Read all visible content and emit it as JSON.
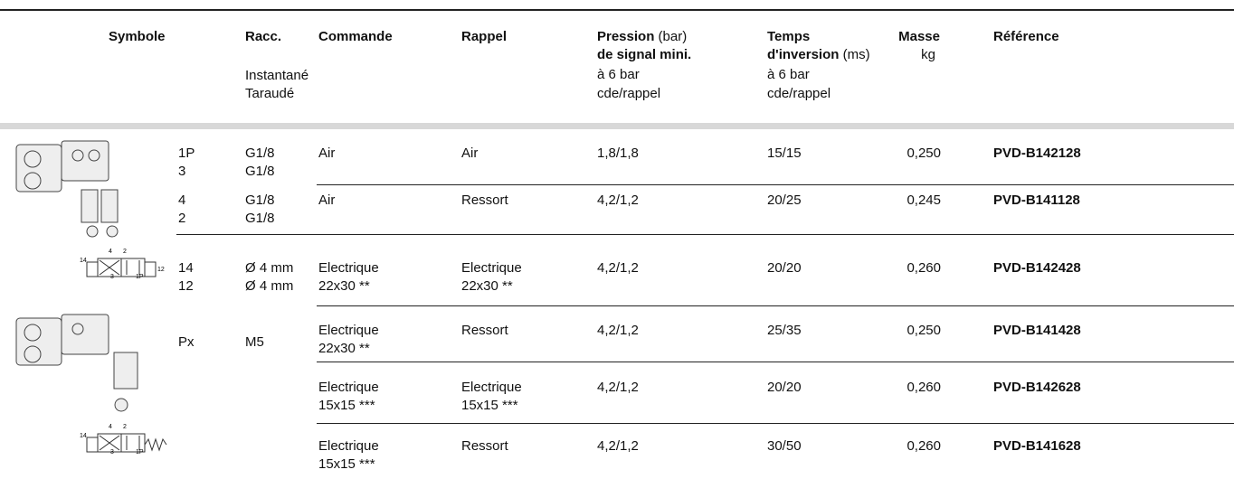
{
  "header": {
    "symbole": "Symbole",
    "racc": {
      "title": "Racc.",
      "line2": "Instantané",
      "line3": "Taraudé"
    },
    "commande": "Commande",
    "rappel": "Rappel",
    "pression": {
      "bold": "Pression",
      "unit": "(bar)",
      "line2": "de signal mini.",
      "line3": "à 6 bar",
      "line4": "cde/rappel"
    },
    "temps": {
      "bold": "Temps",
      "line2": "d'inversion",
      "unit": "(ms)",
      "line3": "à 6 bar",
      "line4": "cde/rappel"
    },
    "masse": {
      "title": "Masse",
      "unit": "kg"
    },
    "reference": "Référence"
  },
  "symbols": [
    {
      "labels": [
        "14",
        "4",
        "2",
        "12",
        "3",
        "1P"
      ]
    },
    {
      "labels": [
        "14",
        "4",
        "2",
        "3",
        "1P"
      ]
    }
  ],
  "table": {
    "shared": {
      "port": "Px",
      "racc": "M5"
    },
    "rows": [
      {
        "ports": [
          "1P",
          "3"
        ],
        "racc": [
          "G1/8",
          "G1/8"
        ],
        "commande": [
          "Air"
        ],
        "rappel": [
          "Air"
        ],
        "pression": "1,8/1,8",
        "temps": "15/15",
        "masse": "0,250",
        "reference": "PVD-B142128"
      },
      {
        "ports": [
          "4",
          "2"
        ],
        "racc": [
          "G1/8",
          "G1/8"
        ],
        "commande": [
          "Air"
        ],
        "rappel": [
          "Ressort"
        ],
        "pression": "4,2/1,2",
        "temps": "20/25",
        "masse": "0,245",
        "reference": "PVD-B141128"
      },
      {
        "ports": [
          "14",
          "12"
        ],
        "racc": [
          "Ø 4 mm",
          "Ø 4 mm"
        ],
        "commande": [
          "Electrique",
          "22x30 **"
        ],
        "rappel": [
          "Electrique",
          "22x30 **"
        ],
        "pression": "4,2/1,2",
        "temps": "20/20",
        "masse": "0,260",
        "reference": "PVD-B142428"
      },
      {
        "commande": [
          "Electrique",
          "22x30 **"
        ],
        "rappel": [
          "Ressort"
        ],
        "pression": "4,2/1,2",
        "temps": "25/35",
        "masse": "0,250",
        "reference": "PVD-B141428"
      },
      {
        "commande": [
          "Electrique",
          "15x15 ***"
        ],
        "rappel": [
          "Electrique",
          "15x15 ***"
        ],
        "pression": "4,2/1,2",
        "temps": "20/20",
        "masse": "0,260",
        "reference": "PVD-B142628"
      },
      {
        "commande": [
          "Electrique",
          "15x15 ***"
        ],
        "rappel": [
          "Ressort"
        ],
        "pression": "4,2/1,2",
        "temps": "30/50",
        "masse": "0,260",
        "reference": "PVD-B141628"
      }
    ]
  }
}
